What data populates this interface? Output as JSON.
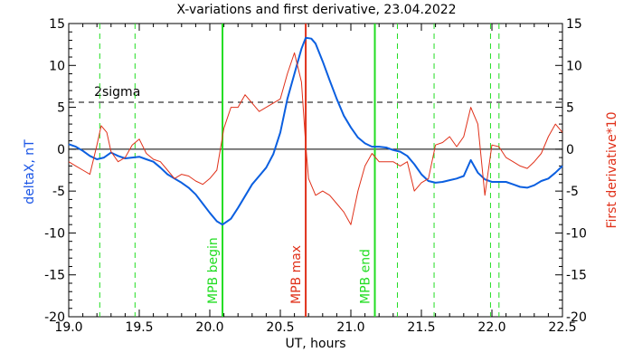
{
  "chart_data": {
    "type": "line",
    "title": "X-variations and first derivative, 23.04.2022",
    "xlabel": "UT, hours",
    "ylabel_left": "deltaX, nT",
    "ylabel_right": "First derivative*10",
    "xlim": [
      19.0,
      22.5
    ],
    "ylim": [
      -20,
      15
    ],
    "x_ticks": [
      "19.0",
      "19.5",
      "20.0",
      "20.5",
      "21.0",
      "21.5",
      "22.0",
      "22.5"
    ],
    "y_ticks": [
      "-20",
      "-15",
      "-10",
      "-5",
      "0",
      "5",
      "10",
      "15"
    ],
    "threshold": {
      "label": "2sigma",
      "value": 5.6
    },
    "colors": {
      "deltaX": "#0b5fe0",
      "derivative": "#e0311a",
      "markers": "#22dd22",
      "mpb_max": "#e0311a",
      "axis_left_label": "#1a55e6",
      "axis_right_label": "#e0311a"
    },
    "vertical_markers": [
      {
        "x": 20.09,
        "label": "MPB begin",
        "style": "solid",
        "color": "green"
      },
      {
        "x": 20.68,
        "label": "MPB max",
        "style": "solid",
        "color": "red"
      },
      {
        "x": 21.17,
        "label": "MPB end",
        "style": "solid",
        "color": "green"
      },
      {
        "x": 19.22,
        "style": "dashed"
      },
      {
        "x": 19.47,
        "style": "dashed"
      },
      {
        "x": 21.33,
        "style": "dashed"
      },
      {
        "x": 21.59,
        "style": "dashed"
      },
      {
        "x": 21.99,
        "style": "dashed"
      },
      {
        "x": 22.05,
        "style": "dashed"
      }
    ],
    "series": [
      {
        "name": "deltaX, nT",
        "x": [
          19.0,
          19.05,
          19.1,
          19.15,
          19.2,
          19.25,
          19.3,
          19.35,
          19.4,
          19.45,
          19.5,
          19.55,
          19.6,
          19.65,
          19.7,
          19.75,
          19.8,
          19.85,
          19.9,
          19.95,
          20.0,
          20.05,
          20.09,
          20.15,
          20.2,
          20.25,
          20.3,
          20.35,
          20.4,
          20.45,
          20.5,
          20.55,
          20.6,
          20.65,
          20.68,
          20.72,
          20.75,
          20.8,
          20.85,
          20.9,
          20.95,
          21.0,
          21.05,
          21.1,
          21.15,
          21.2,
          21.25,
          21.3,
          21.35,
          21.4,
          21.45,
          21.5,
          21.55,
          21.6,
          21.65,
          21.7,
          21.75,
          21.8,
          21.85,
          21.9,
          21.95,
          22.0,
          22.05,
          22.1,
          22.15,
          22.2,
          22.25,
          22.3,
          22.35,
          22.4,
          22.45,
          22.5
        ],
        "values": [
          0.6,
          0.3,
          -0.2,
          -0.8,
          -1.2,
          -1.0,
          -0.4,
          -0.8,
          -1.1,
          -1.0,
          -0.9,
          -1.2,
          -1.5,
          -2.2,
          -3.0,
          -3.5,
          -4.0,
          -4.6,
          -5.4,
          -6.5,
          -7.6,
          -8.6,
          -9.0,
          -8.3,
          -7.0,
          -5.6,
          -4.2,
          -3.2,
          -2.2,
          -0.6,
          2.0,
          6.0,
          9.0,
          12.0,
          13.3,
          13.2,
          12.6,
          10.5,
          8.2,
          6.0,
          4.0,
          2.6,
          1.4,
          0.7,
          0.3,
          0.3,
          0.2,
          -0.1,
          -0.3,
          -0.8,
          -1.8,
          -3.0,
          -3.8,
          -4.0,
          -3.9,
          -3.7,
          -3.5,
          -3.2,
          -1.3,
          -2.8,
          -3.6,
          -3.9,
          -3.9,
          -3.9,
          -4.2,
          -4.5,
          -4.6,
          -4.3,
          -3.8,
          -3.5,
          -2.8,
          -2.0
        ]
      },
      {
        "name": "First derivative*10",
        "x": [
          19.0,
          19.05,
          19.1,
          19.15,
          19.2,
          19.23,
          19.27,
          19.3,
          19.35,
          19.4,
          19.45,
          19.5,
          19.55,
          19.6,
          19.65,
          19.7,
          19.75,
          19.8,
          19.85,
          19.9,
          19.95,
          20.0,
          20.05,
          20.1,
          20.15,
          20.2,
          20.25,
          20.3,
          20.35,
          20.4,
          20.45,
          20.5,
          20.55,
          20.6,
          20.65,
          20.68,
          20.7,
          20.75,
          20.8,
          20.85,
          20.9,
          20.95,
          21.0,
          21.05,
          21.1,
          21.15,
          21.2,
          21.25,
          21.3,
          21.35,
          21.4,
          21.45,
          21.5,
          21.55,
          21.6,
          21.65,
          21.7,
          21.75,
          21.8,
          21.85,
          21.9,
          21.95,
          22.0,
          22.05,
          22.1,
          22.15,
          22.2,
          22.25,
          22.3,
          22.35,
          22.4,
          22.45,
          22.5
        ],
        "values": [
          -1.5,
          -2.0,
          -2.5,
          -3.0,
          0.5,
          2.8,
          2.0,
          -0.3,
          -1.5,
          -1.0,
          0.5,
          1.2,
          -0.5,
          -1.2,
          -1.5,
          -2.5,
          -3.5,
          -3.0,
          -3.2,
          -3.8,
          -4.2,
          -3.5,
          -2.5,
          2.5,
          5.0,
          5.0,
          6.5,
          5.5,
          4.5,
          5.0,
          5.5,
          6.0,
          9.0,
          11.5,
          8.0,
          0.5,
          -3.5,
          -5.5,
          -5.0,
          -5.5,
          -6.5,
          -7.5,
          -9.0,
          -5.0,
          -2.0,
          -0.5,
          -1.5,
          -1.5,
          -1.5,
          -2.0,
          -1.5,
          -5.0,
          -4.0,
          -3.5,
          0.5,
          0.8,
          1.5,
          0.3,
          1.5,
          5.0,
          3.0,
          -5.5,
          0.5,
          0.3,
          -1.0,
          -1.5,
          -2.0,
          -2.3,
          -1.5,
          -0.5,
          1.5,
          3.0,
          2.0
        ]
      }
    ]
  }
}
